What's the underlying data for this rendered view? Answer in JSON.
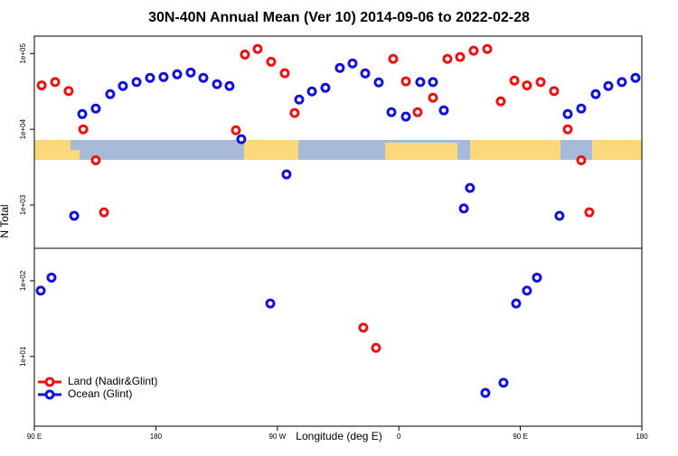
{
  "chart_data": {
    "type": "scatter",
    "title": "30N-40N Annual Mean (Ver 10)   2014-09-06 to 2022-02-28",
    "x_label": "Longitude (deg E)",
    "y_label": "N Total",
    "xlim": [
      90,
      540
    ],
    "xticks": [
      {
        "value": 90,
        "label": "90 E"
      },
      {
        "value": 180,
        "label": "180"
      },
      {
        "value": 270,
        "label": "90 W"
      },
      {
        "value": 360,
        "label": "0"
      },
      {
        "value": 450,
        "label": "90 E"
      },
      {
        "value": 540,
        "label": "180"
      }
    ],
    "ylim": [
      1.2,
      170000
    ],
    "yscale": "log",
    "yticks": [
      {
        "value": 10,
        "label": "1e+01"
      },
      {
        "value": 100,
        "label": "1e+02"
      },
      {
        "value": 1000,
        "label": "1e+03"
      },
      {
        "value": 10000,
        "label": "1e+04"
      },
      {
        "value": 100000,
        "label": "1e+05"
      }
    ],
    "legend": "lower left",
    "series": [
      {
        "name": "Land (Nadir&Glint)",
        "color": "#ee1111",
        "x": [
          95.4,
          105.4,
          115.4,
          126.2,
          135.5,
          141.6,
          239.3,
          246.0,
          255.4,
          265.4,
          275.5,
          282.8,
          333.7,
          343.1,
          355.8,
          365.2,
          373.9,
          385.3,
          396.0,
          405.4,
          415.4,
          425.5,
          435.5,
          445.6,
          454.9,
          465.0,
          475.0,
          485.1,
          495.1,
          501.1
        ],
        "values": [
          38000,
          42000,
          32000,
          10000,
          3900,
          800,
          9700,
          97000,
          115000,
          78000,
          55000,
          16400,
          24,
          13,
          85000,
          43000,
          16800,
          26100,
          85000,
          90000,
          109000,
          115000,
          23400,
          44000,
          38000,
          42000,
          32000,
          10000,
          3900,
          800
        ]
      },
      {
        "name": "Ocean (Glint)",
        "color": "#1111dd",
        "x": [
          94.7,
          102.7,
          119.5,
          125.5,
          135.5,
          146.2,
          155.6,
          165.7,
          175.7,
          185.7,
          195.8,
          205.8,
          215.2,
          225.3,
          234.6,
          243.3,
          264.8,
          276.8,
          286.2,
          295.6,
          305.6,
          316.3,
          325.7,
          335.1,
          345.1,
          354.5,
          365.2,
          375.9,
          385.3,
          393.3,
          408.1,
          412.7,
          424.1,
          437.5,
          446.9,
          454.9,
          462.3,
          479.0,
          485.1,
          495.1,
          505.8,
          515.2,
          525.2,
          535.3
        ],
        "values": [
          74,
          110,
          720,
          15900,
          18800,
          29100,
          37300,
          42000,
          47700,
          49000,
          53200,
          56200,
          47700,
          39400,
          37300,
          7400,
          50,
          2540,
          24700,
          31600,
          35300,
          64500,
          74000,
          54700,
          41600,
          16800,
          14700,
          42000,
          42000,
          17800,
          900,
          1680,
          3.3,
          4.5,
          50,
          74,
          110,
          720,
          15900,
          18800,
          29100,
          37300,
          42000,
          47700
        ]
      }
    ]
  }
}
